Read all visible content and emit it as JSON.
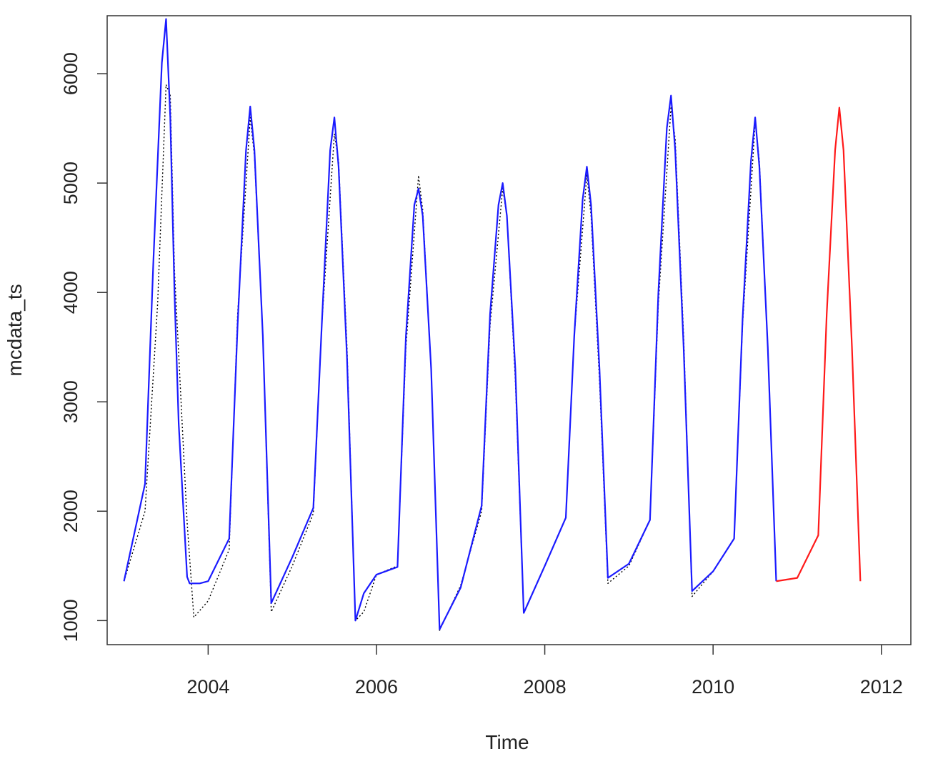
{
  "chart_data": {
    "type": "line",
    "title": "",
    "xlabel": "Time",
    "ylabel": "mcdata_ts",
    "xlim": [
      2002.8,
      2012.35
    ],
    "ylim": [
      780,
      6530
    ],
    "x_ticks": [
      2004,
      2006,
      2008,
      2010,
      2012
    ],
    "y_ticks": [
      1000,
      2000,
      3000,
      4000,
      5000,
      6000
    ],
    "x_tick_labels": [
      "2004",
      "2006",
      "2008",
      "2010",
      "2012"
    ],
    "y_tick_labels": [
      "1000",
      "2000",
      "3000",
      "4000",
      "5000",
      "6000"
    ],
    "grid": false,
    "legend": "none",
    "series": [
      {
        "style": "dotted",
        "color": "#000000",
        "x": [
          2003.0,
          2003.25,
          2003.4,
          2003.5,
          2003.55,
          2003.6,
          2003.75,
          2003.83,
          2004.0,
          2004.25,
          2004.35,
          2004.5,
          2004.55,
          2004.65,
          2004.75,
          2005.0,
          2005.25,
          2005.35,
          2005.5,
          2005.55,
          2005.65,
          2005.75,
          2005.85,
          2006.0,
          2006.25,
          2006.35,
          2006.5,
          2006.55,
          2006.65,
          2006.75,
          2007.0,
          2007.25,
          2007.35,
          2007.5,
          2007.55,
          2007.65,
          2007.75,
          2008.0,
          2008.25,
          2008.35,
          2008.5,
          2008.55,
          2008.65,
          2008.75,
          2009.0,
          2009.25,
          2009.35,
          2009.5,
          2009.55,
          2009.65,
          2009.75,
          2010.0,
          2010.25,
          2010.35,
          2010.5,
          2010.55,
          2010.65,
          2010.75
        ],
        "values": [
          1360,
          2000,
          3900,
          5900,
          5800,
          4200,
          1900,
          1030,
          1180,
          1650,
          3800,
          5600,
          5250,
          3600,
          1080,
          1500,
          1980,
          3700,
          5450,
          5200,
          3500,
          1000,
          1080,
          1420,
          1500,
          3500,
          5070,
          4750,
          3300,
          910,
          1320,
          2000,
          3700,
          4950,
          4700,
          3200,
          1070,
          1500,
          1940,
          3600,
          5080,
          4700,
          3200,
          1340,
          1500,
          1920,
          3900,
          5700,
          5400,
          3600,
          1220,
          1450,
          1750,
          3700,
          5560,
          5200,
          3500,
          1360
        ]
      },
      {
        "style": "solid",
        "color": "#1a1aff",
        "x": [
          2003.0,
          2003.25,
          2003.35,
          2003.45,
          2003.5,
          2003.55,
          2003.6,
          2003.65,
          2003.75,
          2003.78,
          2003.9,
          2004.0,
          2004.25,
          2004.35,
          2004.45,
          2004.5,
          2004.55,
          2004.65,
          2004.75,
          2005.0,
          2005.25,
          2005.35,
          2005.45,
          2005.5,
          2005.55,
          2005.65,
          2005.75,
          2005.85,
          2006.0,
          2006.25,
          2006.35,
          2006.45,
          2006.5,
          2006.55,
          2006.65,
          2006.75,
          2007.0,
          2007.25,
          2007.35,
          2007.45,
          2007.5,
          2007.55,
          2007.65,
          2007.75,
          2008.0,
          2008.25,
          2008.35,
          2008.45,
          2008.5,
          2008.55,
          2008.65,
          2008.75,
          2009.0,
          2009.25,
          2009.35,
          2009.45,
          2009.5,
          2009.55,
          2009.65,
          2009.75,
          2010.0,
          2010.25,
          2010.35,
          2010.45,
          2010.5,
          2010.55,
          2010.65,
          2010.75
        ],
        "values": [
          1360,
          2250,
          4300,
          6100,
          6500,
          5600,
          4000,
          2800,
          1400,
          1340,
          1340,
          1360,
          1750,
          3700,
          5300,
          5700,
          5300,
          3600,
          1160,
          1580,
          2030,
          3700,
          5300,
          5600,
          5150,
          3400,
          1000,
          1250,
          1420,
          1490,
          3600,
          4800,
          4950,
          4700,
          3300,
          920,
          1300,
          2050,
          3800,
          4800,
          5000,
          4700,
          3300,
          1070,
          1500,
          1940,
          3600,
          4850,
          5150,
          4800,
          3300,
          1390,
          1520,
          1920,
          4000,
          5500,
          5800,
          5300,
          3500,
          1270,
          1450,
          1750,
          3750,
          5200,
          5600,
          5150,
          3500,
          1360
        ]
      },
      {
        "style": "solid",
        "color": "#ff1a1a",
        "x": [
          2010.75,
          2011.0,
          2011.25,
          2011.35,
          2011.45,
          2011.5,
          2011.55,
          2011.65,
          2011.75
        ],
        "values": [
          1360,
          1390,
          1780,
          3800,
          5300,
          5690,
          5300,
          3500,
          1360
        ]
      }
    ]
  }
}
